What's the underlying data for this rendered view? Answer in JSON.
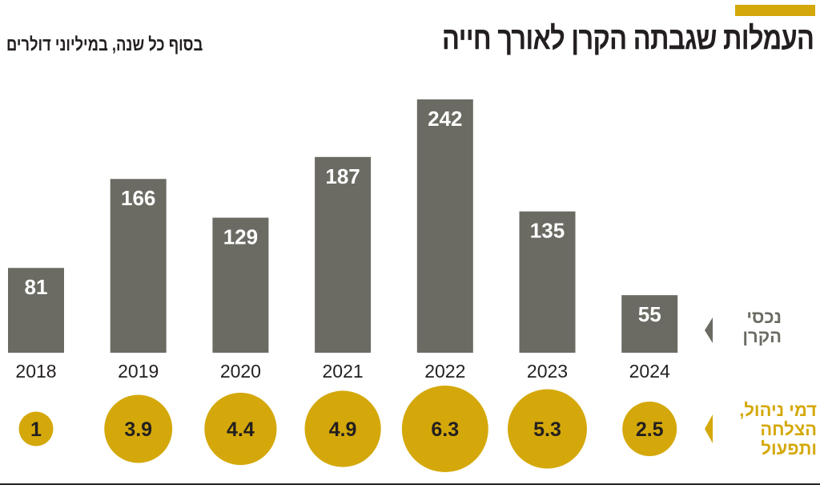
{
  "title": "העמלות שגבתה הקרן לאורך חייה",
  "subtitle": "בסוף כל שנה, במיליוני דולרים",
  "legend": {
    "bars": "נכסי הקרן",
    "circles": "דמי ניהול, הצלחה ותפעול"
  },
  "colors": {
    "bars": "#6b6b63",
    "circles": "#d4a80a",
    "accent": "#d4a80a"
  },
  "chart_data": {
    "type": "bar",
    "categories": [
      "2018",
      "2019",
      "2020",
      "2021",
      "2022",
      "2023",
      "2024"
    ],
    "series": [
      {
        "name": "נכסי הקרן",
        "values": [
          81,
          166,
          129,
          187,
          242,
          135,
          55
        ]
      },
      {
        "name": "דמי ניהול, הצלחה ותפעול",
        "values": [
          1,
          3.9,
          4.4,
          4.9,
          6.3,
          5.3,
          2.5
        ],
        "mark": "circle-area"
      }
    ],
    "data_labels": true,
    "grid": false,
    "legend": "right"
  }
}
